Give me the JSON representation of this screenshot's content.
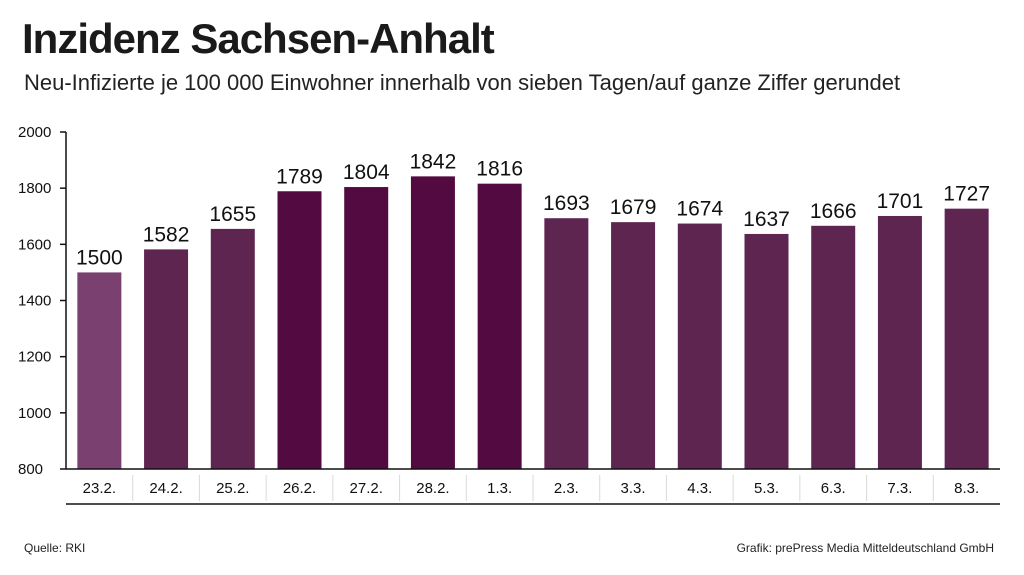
{
  "title": "Inzidenz Sachsen-Anhalt",
  "subtitle": "Neu-Infizierte je 100 000 Einwohner innerhalb von sieben Tagen/auf ganze Ziffer gerundet",
  "source": "Quelle: RKI",
  "credit": "Grafik: prePress Media Mitteldeutschland GmbH",
  "colors": {
    "bar_light": "#7a4170",
    "bar_mid": "#5e2550",
    "bar_dark": "#520a40",
    "axis": "#111111",
    "grid": "#d9d9d9"
  },
  "chart_data": {
    "type": "bar",
    "title": "Inzidenz Sachsen-Anhalt",
    "xlabel": "",
    "ylabel": "",
    "ylim": [
      800,
      2000
    ],
    "yticks": [
      800,
      1000,
      1200,
      1400,
      1600,
      1800,
      2000
    ],
    "categories": [
      "23.2.",
      "24.2.",
      "25.2.",
      "26.2.",
      "27.2.",
      "28.2.",
      "1.3.",
      "2.3.",
      "3.3.",
      "4.3.",
      "5.3.",
      "6.3.",
      "7.3.",
      "8.3."
    ],
    "values": [
      1500,
      1582,
      1655,
      1789,
      1804,
      1842,
      1816,
      1693,
      1679,
      1674,
      1637,
      1666,
      1701,
      1727
    ],
    "shades": [
      "light",
      "mid",
      "mid",
      "dark",
      "dark",
      "dark",
      "dark",
      "mid",
      "mid",
      "mid",
      "mid",
      "mid",
      "mid",
      "mid"
    ]
  }
}
